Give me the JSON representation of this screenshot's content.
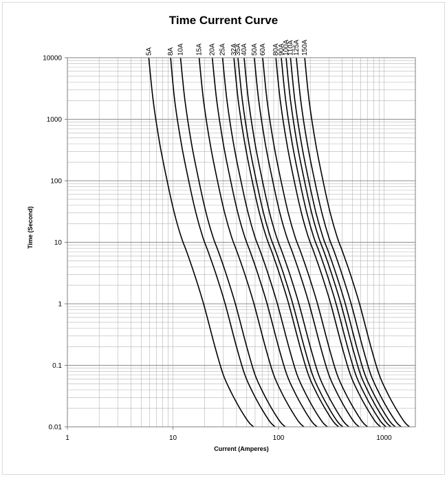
{
  "chart_data": {
    "type": "line",
    "title": "Time Current Curve",
    "xlabel": "Current (Amperes)",
    "ylabel": "Time (Second)",
    "x_scale": "log",
    "y_scale": "log",
    "xlim": [
      1,
      1500
    ],
    "ylim": [
      0.01,
      10000
    ],
    "x_ticks": [
      1,
      10,
      100,
      1000
    ],
    "x_tick_labels": [
      "1",
      "10",
      "100",
      "1000"
    ],
    "y_ticks": [
      0.01,
      0.1,
      1,
      10,
      100,
      1000,
      10000
    ],
    "y_tick_labels": [
      "0.01",
      "0.1",
      "1",
      "10",
      "100",
      "1000",
      "10000"
    ],
    "grid": true,
    "series": [
      {
        "name": "5A",
        "rated_current": 5,
        "points": [
          [
            5.9,
            10000
          ],
          [
            6.5,
            2000
          ],
          [
            7.5,
            400
          ],
          [
            8.8,
            100
          ],
          [
            10.3,
            30
          ],
          [
            12.0,
            12
          ],
          [
            13.5,
            7
          ],
          [
            16,
            3
          ],
          [
            19.5,
            1
          ],
          [
            25,
            0.2
          ],
          [
            30,
            0.07
          ],
          [
            36,
            0.035
          ],
          [
            43,
            0.02
          ],
          [
            52,
            0.012
          ],
          [
            58,
            0.01
          ]
        ]
      },
      {
        "name": "8A",
        "rated_current": 8,
        "points": [
          [
            9.5,
            10000
          ],
          [
            10.4,
            2000
          ],
          [
            12.0,
            400
          ],
          [
            14.1,
            100
          ],
          [
            16.5,
            30
          ],
          [
            19.2,
            12
          ],
          [
            21.6,
            7
          ],
          [
            25.6,
            3
          ],
          [
            31.2,
            1
          ],
          [
            40,
            0.2
          ],
          [
            48,
            0.07
          ],
          [
            57.6,
            0.035
          ],
          [
            68.8,
            0.02
          ],
          [
            83.2,
            0.012
          ],
          [
            92.8,
            0.01
          ]
        ]
      },
      {
        "name": "10A",
        "rated_current": 10,
        "points": [
          [
            11.8,
            10000
          ],
          [
            13.0,
            2000
          ],
          [
            15.0,
            400
          ],
          [
            17.6,
            100
          ],
          [
            20.6,
            30
          ],
          [
            24,
            12
          ],
          [
            27,
            7
          ],
          [
            32,
            3
          ],
          [
            39,
            1
          ],
          [
            50,
            0.2
          ],
          [
            60,
            0.07
          ],
          [
            72,
            0.035
          ],
          [
            86,
            0.02
          ],
          [
            104,
            0.012
          ],
          [
            116,
            0.01
          ]
        ]
      },
      {
        "name": "15A",
        "rated_current": 15,
        "points": [
          [
            17.7,
            10000
          ],
          [
            19.5,
            2000
          ],
          [
            22.5,
            400
          ],
          [
            26.4,
            100
          ],
          [
            30.9,
            30
          ],
          [
            36,
            12
          ],
          [
            40.5,
            7
          ],
          [
            48,
            3
          ],
          [
            58.5,
            1
          ],
          [
            75,
            0.2
          ],
          [
            90,
            0.07
          ],
          [
            108,
            0.035
          ],
          [
            129,
            0.02
          ],
          [
            156,
            0.012
          ],
          [
            174,
            0.01
          ]
        ]
      },
      {
        "name": "20A",
        "rated_current": 20,
        "points": [
          [
            23.6,
            10000
          ],
          [
            26,
            2000
          ],
          [
            30,
            400
          ],
          [
            35.2,
            100
          ],
          [
            41.2,
            30
          ],
          [
            48,
            12
          ],
          [
            54,
            7
          ],
          [
            64,
            3
          ],
          [
            78,
            1
          ],
          [
            100,
            0.2
          ],
          [
            120,
            0.07
          ],
          [
            144,
            0.035
          ],
          [
            172,
            0.02
          ],
          [
            208,
            0.012
          ],
          [
            232,
            0.01
          ]
        ]
      },
      {
        "name": "25A",
        "rated_current": 25,
        "points": [
          [
            29.5,
            10000
          ],
          [
            32.5,
            2000
          ],
          [
            37.5,
            400
          ],
          [
            44,
            100
          ],
          [
            51.5,
            30
          ],
          [
            60,
            12
          ],
          [
            67.5,
            7
          ],
          [
            80,
            3
          ],
          [
            97.5,
            1
          ],
          [
            125,
            0.2
          ],
          [
            150,
            0.07
          ],
          [
            180,
            0.035
          ],
          [
            215,
            0.02
          ],
          [
            260,
            0.012
          ],
          [
            290,
            0.01
          ]
        ]
      },
      {
        "name": "32A",
        "rated_current": 32,
        "points": [
          [
            37.8,
            10000
          ],
          [
            41.6,
            2000
          ],
          [
            48,
            400
          ],
          [
            56.3,
            100
          ],
          [
            65.9,
            30
          ],
          [
            76.8,
            12
          ],
          [
            86.4,
            7
          ],
          [
            102.4,
            3
          ],
          [
            124.8,
            1
          ],
          [
            160,
            0.2
          ],
          [
            192,
            0.07
          ],
          [
            230.4,
            0.035
          ],
          [
            275.2,
            0.02
          ],
          [
            332.8,
            0.012
          ],
          [
            371.2,
            0.01
          ]
        ]
      },
      {
        "name": "35A",
        "rated_current": 35,
        "points": [
          [
            41.3,
            10000
          ],
          [
            45.5,
            2000
          ],
          [
            52.5,
            400
          ],
          [
            61.6,
            100
          ],
          [
            72.1,
            30
          ],
          [
            84,
            12
          ],
          [
            94.5,
            7
          ],
          [
            112,
            3
          ],
          [
            136.5,
            1
          ],
          [
            175,
            0.2
          ],
          [
            210,
            0.07
          ],
          [
            252,
            0.035
          ],
          [
            301,
            0.02
          ],
          [
            364,
            0.012
          ],
          [
            406,
            0.01
          ]
        ]
      },
      {
        "name": "40A",
        "rated_current": 40,
        "points": [
          [
            47.2,
            10000
          ],
          [
            52,
            2000
          ],
          [
            60,
            400
          ],
          [
            70.4,
            100
          ],
          [
            82.4,
            30
          ],
          [
            96,
            12
          ],
          [
            108,
            7
          ],
          [
            128,
            3
          ],
          [
            156,
            1
          ],
          [
            200,
            0.2
          ],
          [
            240,
            0.07
          ],
          [
            288,
            0.035
          ],
          [
            344,
            0.02
          ],
          [
            416,
            0.012
          ],
          [
            464,
            0.01
          ]
        ]
      },
      {
        "name": "50A",
        "rated_current": 50,
        "points": [
          [
            59,
            10000
          ],
          [
            65,
            2000
          ],
          [
            75,
            400
          ],
          [
            88,
            100
          ],
          [
            103,
            30
          ],
          [
            120,
            12
          ],
          [
            135,
            7
          ],
          [
            160,
            3
          ],
          [
            195,
            1
          ],
          [
            250,
            0.2
          ],
          [
            300,
            0.07
          ],
          [
            360,
            0.035
          ],
          [
            430,
            0.02
          ],
          [
            520,
            0.012
          ],
          [
            580,
            0.01
          ]
        ]
      },
      {
        "name": "60A",
        "rated_current": 60,
        "points": [
          [
            70.8,
            10000
          ],
          [
            78,
            2000
          ],
          [
            90,
            400
          ],
          [
            105.6,
            100
          ],
          [
            123.6,
            30
          ],
          [
            144,
            12
          ],
          [
            162,
            7
          ],
          [
            192,
            3
          ],
          [
            234,
            1
          ],
          [
            300,
            0.2
          ],
          [
            360,
            0.07
          ],
          [
            432,
            0.035
          ],
          [
            516,
            0.02
          ],
          [
            624,
            0.012
          ],
          [
            696,
            0.01
          ]
        ]
      },
      {
        "name": "80A",
        "rated_current": 80,
        "points": [
          [
            94.4,
            10000
          ],
          [
            104,
            2000
          ],
          [
            120,
            400
          ],
          [
            140.8,
            100
          ],
          [
            164.8,
            30
          ],
          [
            192,
            12
          ],
          [
            216,
            7
          ],
          [
            256,
            3
          ],
          [
            312,
            1
          ],
          [
            400,
            0.2
          ],
          [
            480,
            0.07
          ],
          [
            576,
            0.035
          ],
          [
            688,
            0.02
          ],
          [
            832,
            0.012
          ],
          [
            928,
            0.01
          ]
        ]
      },
      {
        "name": "90A",
        "rated_current": 90,
        "points": [
          [
            106.2,
            10000
          ],
          [
            117,
            2000
          ],
          [
            135,
            400
          ],
          [
            158.4,
            100
          ],
          [
            185.4,
            30
          ],
          [
            216,
            12
          ],
          [
            243,
            7
          ],
          [
            288,
            3
          ],
          [
            351,
            1
          ],
          [
            450,
            0.2
          ],
          [
            540,
            0.07
          ],
          [
            648,
            0.035
          ],
          [
            774,
            0.02
          ],
          [
            936,
            0.012
          ],
          [
            1044,
            0.01
          ]
        ]
      },
      {
        "name": "100A",
        "rated_current": 100,
        "points": [
          [
            118,
            10000
          ],
          [
            130,
            2000
          ],
          [
            150,
            400
          ],
          [
            176,
            100
          ],
          [
            206,
            30
          ],
          [
            240,
            12
          ],
          [
            270,
            7
          ],
          [
            320,
            3
          ],
          [
            390,
            1
          ],
          [
            500,
            0.2
          ],
          [
            600,
            0.07
          ],
          [
            720,
            0.035
          ],
          [
            860,
            0.02
          ],
          [
            1040,
            0.012
          ],
          [
            1160,
            0.01
          ]
        ]
      },
      {
        "name": "110A",
        "rated_current": 110,
        "points": [
          [
            129.8,
            10000
          ],
          [
            143,
            2000
          ],
          [
            165,
            400
          ],
          [
            193.6,
            100
          ],
          [
            226.6,
            30
          ],
          [
            264,
            12
          ],
          [
            297,
            7
          ],
          [
            352,
            3
          ],
          [
            429,
            1
          ],
          [
            550,
            0.2
          ],
          [
            660,
            0.07
          ],
          [
            792,
            0.035
          ],
          [
            946,
            0.02
          ],
          [
            1144,
            0.012
          ],
          [
            1276,
            0.01
          ]
        ]
      },
      {
        "name": "125A",
        "rated_current": 125,
        "points": [
          [
            147.5,
            10000
          ],
          [
            162.5,
            2000
          ],
          [
            187.5,
            400
          ],
          [
            220,
            100
          ],
          [
            257.5,
            30
          ],
          [
            300,
            12
          ],
          [
            337.5,
            7
          ],
          [
            400,
            3
          ],
          [
            487.5,
            1
          ],
          [
            625,
            0.2
          ],
          [
            750,
            0.07
          ],
          [
            900,
            0.035
          ],
          [
            1075,
            0.02
          ],
          [
            1300,
            0.012
          ],
          [
            1450,
            0.01
          ]
        ]
      },
      {
        "name": "150A",
        "rated_current": 150,
        "points": [
          [
            177,
            10000
          ],
          [
            195,
            2000
          ],
          [
            225,
            400
          ],
          [
            264,
            100
          ],
          [
            309,
            30
          ],
          [
            360,
            12
          ],
          [
            405,
            7
          ],
          [
            480,
            3
          ],
          [
            585,
            1
          ],
          [
            750,
            0.2
          ],
          [
            900,
            0.07
          ],
          [
            1080,
            0.035
          ],
          [
            1290,
            0.02
          ],
          [
            1560,
            0.012
          ],
          [
            1740,
            0.01
          ]
        ]
      }
    ]
  }
}
